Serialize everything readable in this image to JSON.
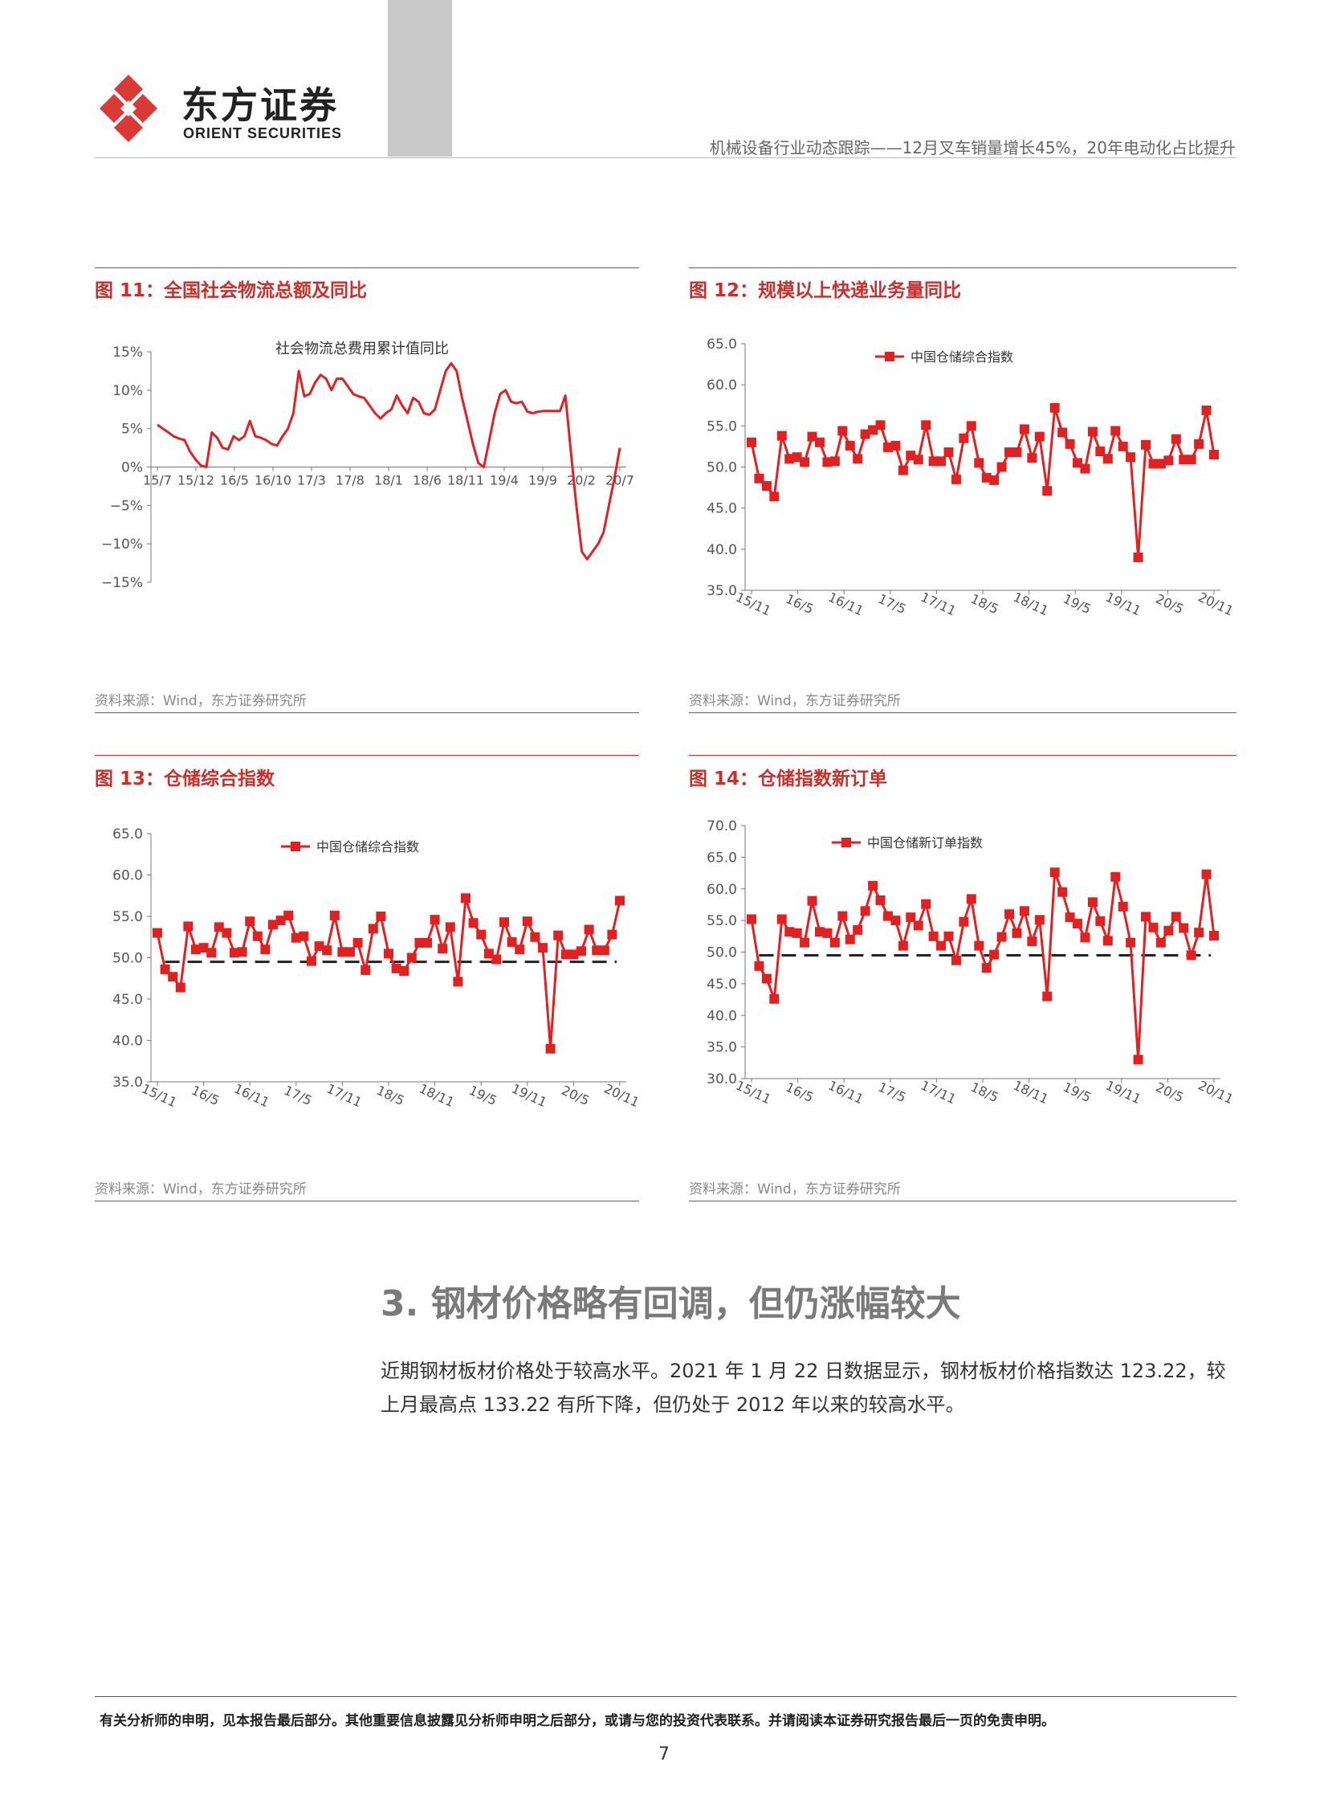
{
  "header": {
    "brand_cn": "东方证券",
    "brand_en": "ORIENT SECURITIES",
    "report_title": "机械设备行业动态跟踪——12月叉车销量增长45%，20年电动化占比提升",
    "colors": {
      "accent": "#c9302c",
      "logo": "#d93a36",
      "gray_block": "#c9c9c9"
    }
  },
  "figures": [
    {
      "title": "图 11：全国社会物流总额及同比",
      "source": "资料来源：Wind，东方证券研究所"
    },
    {
      "title": "图 12：规模以上快递业务量同比",
      "source": "资料来源：Wind，东方证券研究所"
    },
    {
      "title": "图 13：仓储综合指数",
      "source": "资料来源：Wind，东方证券研究所"
    },
    {
      "title": "图 14：仓储指数新订单",
      "source": "资料来源：Wind，东方证券研究所"
    }
  ],
  "chart_data": [
    {
      "type": "line",
      "series_name": "社会物流总费用累计值同比",
      "x_ticks": [
        "15/7",
        "15/12",
        "16/5",
        "16/10",
        "17/3",
        "17/8",
        "18/1",
        "18/6",
        "18/11",
        "19/4",
        "19/9",
        "20/2",
        "20/7"
      ],
      "y_ticks": [
        "15%",
        "10%",
        "5%",
        "0%",
        "−5%",
        "−10%",
        "−15%"
      ],
      "ylim": [
        -15,
        15
      ],
      "color": "#e32020",
      "values": [
        5.5,
        5.0,
        4.5,
        4.0,
        3.7,
        3.5,
        2.0,
        1.0,
        0.2,
        0.0,
        4.5,
        3.8,
        2.5,
        2.3,
        4.0,
        3.5,
        4.0,
        6.0,
        4.0,
        3.8,
        3.5,
        3.0,
        2.8,
        4.0,
        5.0,
        7.0,
        12.5,
        9.2,
        9.5,
        11.0,
        12.0,
        11.5,
        10.0,
        11.5,
        11.5,
        10.5,
        9.5,
        9.2,
        9.0,
        8.0,
        7.0,
        6.3,
        7.0,
        7.5,
        9.3,
        8.0,
        7.0,
        9.0,
        8.5,
        7.0,
        6.8,
        7.5,
        10.0,
        12.5,
        13.5,
        12.5,
        9.0,
        6.0,
        3.0,
        0.5,
        0.0,
        3.5,
        7.0,
        9.5,
        10.0,
        8.5,
        8.3,
        8.5,
        7.2,
        7.0,
        7.2,
        7.3,
        7.3,
        7.3,
        7.3,
        9.3,
        2.0,
        -5.0,
        -11.0,
        -12.0,
        -11.0,
        -10.0,
        -8.5,
        -5.0,
        -1.5,
        2.5
      ]
    },
    {
      "type": "line",
      "series_name": "中国仓储综合指数",
      "x_ticks": [
        "15/11",
        "16/5",
        "16/11",
        "17/5",
        "17/11",
        "18/5",
        "18/11",
        "19/5",
        "19/11",
        "20/5",
        "20/11"
      ],
      "y_ticks": [
        "65.0",
        "60.0",
        "55.0",
        "50.0",
        "45.0",
        "40.0",
        "35.0"
      ],
      "ylim": [
        35,
        65
      ],
      "color": "#e32020",
      "values": [
        53.0,
        48.6,
        47.7,
        46.4,
        53.8,
        51.0,
        51.2,
        50.6,
        53.7,
        53.0,
        50.6,
        50.7,
        54.4,
        52.6,
        51.0,
        54.0,
        54.5,
        55.1,
        52.4,
        52.6,
        49.6,
        51.4,
        50.9,
        55.1,
        50.7,
        50.7,
        51.8,
        48.5,
        53.5,
        55.0,
        50.5,
        48.7,
        48.4,
        50.0,
        51.8,
        51.8,
        54.6,
        51.1,
        53.7,
        47.1,
        57.2,
        54.2,
        52.8,
        50.5,
        49.8,
        54.3,
        51.9,
        51.0,
        54.4,
        52.5,
        51.2,
        39.0,
        52.7,
        50.4,
        50.4,
        50.8,
        53.4,
        50.9,
        50.9,
        52.8,
        56.9,
        51.5
      ]
    },
    {
      "type": "line",
      "series_name": "中国仓储综合指数",
      "x_ticks": [
        "15/11",
        "16/5",
        "16/11",
        "17/5",
        "17/11",
        "18/5",
        "18/11",
        "19/5",
        "19/11",
        "20/5",
        "20/11"
      ],
      "y_ticks": [
        "65.0",
        "60.0",
        "55.0",
        "50.0",
        "45.0",
        "40.0",
        "35.0"
      ],
      "ylim": [
        35,
        65
      ],
      "reference_line": 49.5,
      "color": "#e32020",
      "values": [
        53.0,
        48.6,
        47.7,
        46.4,
        53.8,
        51.0,
        51.2,
        50.6,
        53.7,
        53.0,
        50.6,
        50.7,
        54.4,
        52.6,
        51.0,
        54.0,
        54.5,
        55.1,
        52.4,
        52.6,
        49.6,
        51.4,
        50.9,
        55.1,
        50.7,
        50.7,
        51.8,
        48.5,
        53.5,
        55.0,
        50.5,
        48.7,
        48.4,
        50.0,
        51.8,
        51.8,
        54.6,
        51.1,
        53.7,
        47.1,
        57.2,
        54.2,
        52.8,
        50.5,
        49.8,
        54.3,
        51.9,
        51.0,
        54.4,
        52.5,
        51.2,
        39.0,
        52.7,
        50.4,
        50.4,
        50.8,
        53.4,
        50.9,
        50.9,
        52.8,
        56.9
      ]
    },
    {
      "type": "line",
      "series_name": "中国仓储新订单指数",
      "x_ticks": [
        "15/11",
        "16/5",
        "16/11",
        "17/5",
        "17/11",
        "18/5",
        "18/11",
        "19/5",
        "19/11",
        "20/5",
        "20/11"
      ],
      "y_ticks": [
        "70.0",
        "65.0",
        "60.0",
        "55.0",
        "50.0",
        "45.0",
        "40.0",
        "35.0",
        "30.0"
      ],
      "ylim": [
        30,
        70
      ],
      "reference_line": 49.5,
      "color": "#e32020",
      "values": [
        55.2,
        47.8,
        45.8,
        42.6,
        55.2,
        53.2,
        53.0,
        51.5,
        58.1,
        53.2,
        53.0,
        51.5,
        55.7,
        52.0,
        53.5,
        56.5,
        60.5,
        58.2,
        55.7,
        55.0,
        51.0,
        55.5,
        54.2,
        57.6,
        52.5,
        51.0,
        52.5,
        48.7,
        54.8,
        58.4,
        51.0,
        47.5,
        49.6,
        52.4,
        56.0,
        53.0,
        56.5,
        51.7,
        55.1,
        43.0,
        62.6,
        59.5,
        55.5,
        54.5,
        52.3,
        57.9,
        54.9,
        51.8,
        61.9,
        57.2,
        51.5,
        33.0,
        55.6,
        53.9,
        51.5,
        53.4,
        55.6,
        53.8,
        49.5,
        53.1,
        62.3,
        52.6
      ]
    }
  ],
  "section": {
    "title": "3. 钢材价格略有回调，但仍涨幅较大",
    "paragraph": "近期钢材板材价格处于较高水平。2021 年 1 月 22 日数据显示，钢材板材价格指数达 123.22，较上月最高点 133.22 有所下降，但仍处于 2012 年以来的较高水平。"
  },
  "footer": {
    "disclaimer": "有关分析师的申明，见本报告最后部分。其他重要信息披露见分析师申明之后部分，或请与您的投资代表联系。并请阅读本证券研究报告最后一页的免责申明。",
    "page_number": "7"
  }
}
